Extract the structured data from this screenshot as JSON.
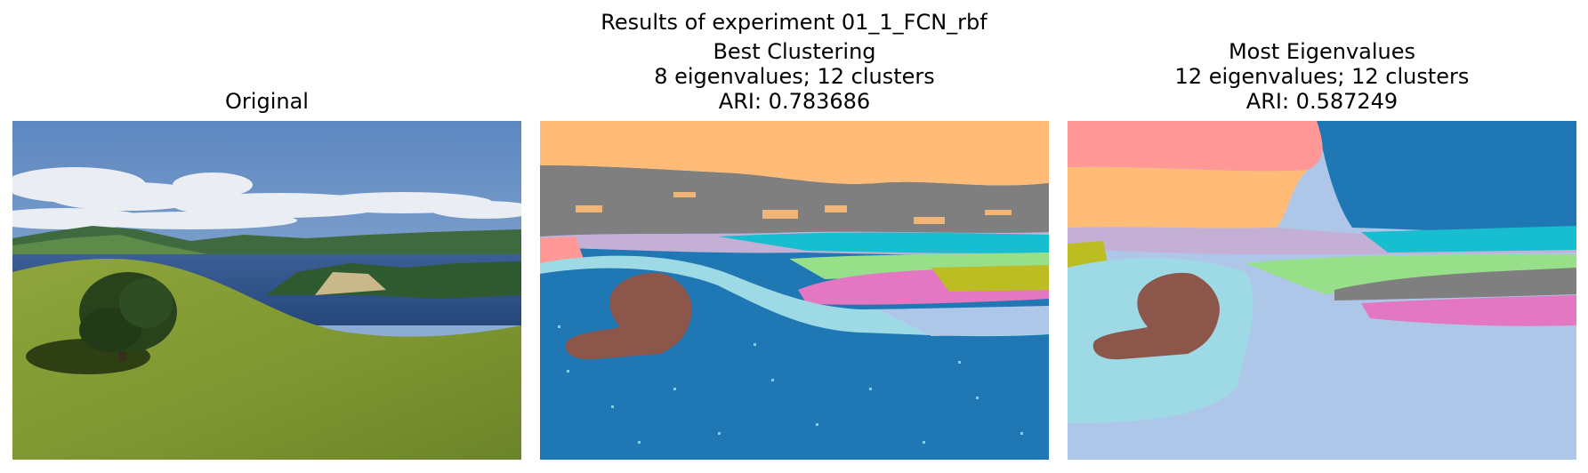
{
  "figure": {
    "suptitle": "Results of experiment 01_1_FCN_rbf"
  },
  "panels": [
    {
      "title_lines": [
        "Original"
      ],
      "kind": "photo"
    },
    {
      "title_lines": [
        "Best Clustering",
        "8 eigenvalues; 12 clusters",
        "ARI: 0.783686"
      ],
      "kind": "clustering"
    },
    {
      "title_lines": [
        "Most Eigenvalues",
        "12 eigenvalues; 12 clusters",
        "ARI: 0.587249"
      ],
      "kind": "clustering"
    }
  ],
  "colors": {
    "tab_blue": "#1f77b4",
    "tab_orange_light": "#ffbb78",
    "tab_gray": "#7f7f7f",
    "tab_cyan": "#17becf",
    "tab_cyan_light": "#9edae5",
    "tab_purple_light": "#c5b0d5",
    "tab_red_light": "#ff9896",
    "tab_green_light": "#98df8a",
    "tab_pink": "#e377c2",
    "tab_olive": "#bcbd22",
    "tab_brown": "#8c564b",
    "tab_blue_light": "#aec7e8"
  }
}
